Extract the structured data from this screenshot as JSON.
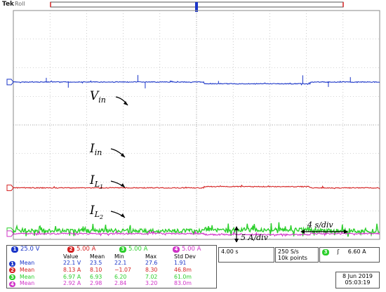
{
  "scope": {
    "brand": "Tek",
    "mode": "Roll"
  },
  "chart_data": {
    "type": "line",
    "title": "",
    "xlabel": "",
    "ylabel": "",
    "grid": true,
    "divisions": {
      "x": 10,
      "y": 8
    },
    "trigger_marker": "T",
    "series": [
      {
        "name": "V_in",
        "label_main": "V",
        "label_sub": "in",
        "color": "#1a35c8",
        "channel": 1,
        "x": [
          0,
          5.2,
          5.2,
          8.1,
          8.1,
          10
        ],
        "y": [
          22.1,
          22.1,
          20.6,
          20.6,
          22.1,
          22.1
        ],
        "offset_div": 5.5,
        "units_per_div": 25.0
      },
      {
        "name": "I_in",
        "label_main": "I",
        "label_sub": "in",
        "color": "#d42020",
        "channel": 2,
        "x": [
          0,
          5.2,
          5.2,
          8.1,
          8.1,
          10
        ],
        "y": [
          8.13,
          8.13,
          8.35,
          8.35,
          8.13,
          8.13
        ],
        "offset_div": 1.8,
        "units_per_div": 5.0
      },
      {
        "name": "I_L1",
        "label_main": "I",
        "label_sub": "L",
        "label_subsub": "1",
        "color": "#2ccf2c",
        "channel": 3,
        "x": [
          0,
          5.2,
          5.2,
          8.1,
          8.1,
          10
        ],
        "y": [
          6.97,
          6.97,
          7.15,
          7.15,
          6.97,
          6.97
        ],
        "offset_div": 0.3,
        "units_per_div": 5.0
      },
      {
        "name": "I_L2",
        "label_main": "I",
        "label_sub": "L",
        "label_subsub": "2",
        "color": "#d033c8",
        "channel": 4,
        "x": [
          0,
          5.2,
          5.2,
          8.1,
          8.1,
          10
        ],
        "y": [
          2.92,
          2.92,
          2.75,
          2.75,
          2.92,
          2.92
        ],
        "offset_div": 0.2,
        "units_per_div": 5.0
      }
    ],
    "annotations": {
      "y_scale": "5 A/div",
      "x_scale": "4 s/div"
    }
  },
  "channels": [
    {
      "num": "1",
      "scale": "25.0 V",
      "color": "#1a35c8"
    },
    {
      "num": "2",
      "scale": "5.00 A",
      "color": "#d42020"
    },
    {
      "num": "3",
      "scale": "5.00 A",
      "color": "#2ccf2c"
    },
    {
      "num": "4",
      "scale": "5.00 A",
      "color": "#d033c8"
    }
  ],
  "measurements": {
    "headers": [
      "Value",
      "Mean",
      "Min",
      "Max",
      "Std Dev"
    ],
    "rows": [
      {
        "num": "1",
        "color": "#1a35c8",
        "label": "Mean",
        "value": "22.1 V",
        "mean": "23.5",
        "min": "22.1",
        "max": "27.6",
        "std": "1.91"
      },
      {
        "num": "2",
        "color": "#d42020",
        "label": "Mean",
        "value": "8.13 A",
        "mean": "8.10",
        "min": "−1.07",
        "max": "8.30",
        "std": "46.8m"
      },
      {
        "num": "3",
        "color": "#2ccf2c",
        "label": "Mean",
        "value": "6.97 A",
        "mean": "6.93",
        "min": "6.20",
        "max": "7.02",
        "std": "61.0m"
      },
      {
        "num": "4",
        "color": "#d033c8",
        "label": "Mean",
        "value": "2.92 A",
        "mean": "2.98",
        "min": "2.84",
        "max": "3.20",
        "std": "83.0m"
      }
    ]
  },
  "timebase": "4.00 s",
  "sample_rate": "250 S/s",
  "record_length": "10k points",
  "trigger": {
    "channel": "3",
    "slope_symbol": "ʃ",
    "level": "6.60 A"
  },
  "date": "8 Jun 2019",
  "time": "05:03:19"
}
